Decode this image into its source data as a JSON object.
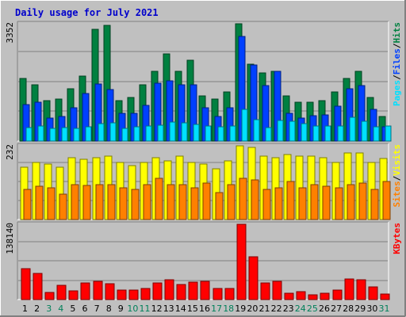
{
  "chart_data": {
    "title": "Daily usage for July 2021",
    "type": "bar",
    "categories": [
      "1",
      "2",
      "3",
      "4",
      "5",
      "6",
      "7",
      "8",
      "9",
      "10",
      "11",
      "12",
      "13",
      "14",
      "15",
      "16",
      "17",
      "18",
      "19",
      "20",
      "21",
      "22",
      "23",
      "24",
      "25",
      "26",
      "27",
      "28",
      "29",
      "30",
      "31"
    ],
    "weekend_days": [
      "3",
      "4",
      "10",
      "11",
      "17",
      "18",
      "24",
      "25",
      "31"
    ],
    "panels": [
      {
        "name": "hits-files-pages",
        "ymax_label": "3352",
        "legend": [
          "Pages",
          "/",
          "Files",
          "/",
          "Hits"
        ],
        "series": [
          {
            "name": "Hits",
            "color": "#008040",
            "values": [
              1800,
              1600,
              1150,
              1200,
              1500,
              1850,
              3200,
              3300,
              1150,
              1250,
              1600,
              2000,
              2500,
              2000,
              2300,
              1300,
              1200,
              1400,
              3352,
              2200,
              1950,
              2000,
              1300,
              1100,
              1100,
              1150,
              1400,
              1780,
              2000,
              1250,
              700
            ]
          },
          {
            "name": "Files",
            "color": "#0040ff",
            "values": [
              1050,
              1100,
              650,
              700,
              950,
              1350,
              1630,
              1480,
              800,
              800,
              1030,
              1650,
              1730,
              1600,
              1600,
              950,
              700,
              950,
              3000,
              2170,
              1580,
              2000,
              800,
              650,
              730,
              750,
              1000,
              1500,
              1580,
              900,
              400
            ]
          },
          {
            "name": "Pages",
            "color": "#00e0ff",
            "values": [
              380,
              420,
              360,
              390,
              360,
              400,
              490,
              520,
              360,
              400,
              420,
              450,
              540,
              510,
              480,
              440,
              400,
              440,
              900,
              620,
              390,
              600,
              570,
              500,
              420,
              430,
              420,
              670,
              560,
              400,
              430
            ]
          }
        ]
      },
      {
        "name": "visits-sites",
        "ymax_label": "232",
        "legend": [
          "Sites",
          "/",
          "Visits"
        ],
        "series": [
          {
            "name": "Visits",
            "color": "#ffff00",
            "values": [
              165,
              180,
              175,
              165,
              195,
              190,
              195,
              200,
              180,
              170,
              180,
              195,
              185,
              200,
              180,
              175,
              160,
              185,
              232,
              227,
              200,
              195,
              205,
              200,
              200,
              195,
              180,
              210,
              210,
              180,
              192
            ]
          },
          {
            "name": "Sites",
            "color": "#ff8000",
            "values": [
              95,
              105,
              100,
              80,
              110,
              108,
              110,
              110,
              100,
              95,
              110,
              130,
              110,
              110,
              100,
              115,
              85,
              110,
              130,
              125,
              95,
              100,
              120,
              100,
              110,
              105,
              100,
              110,
              115,
              95,
              120
            ]
          }
        ]
      },
      {
        "name": "kbytes",
        "ymax_label": "138140",
        "legend": [
          "KBytes"
        ],
        "series": [
          {
            "name": "KBytes",
            "color": "#ff0000",
            "values": [
              57000,
              48000,
              13000,
              26000,
              16000,
              31000,
              34000,
              29000,
              17000,
              18000,
              21000,
              30000,
              37000,
              28000,
              32000,
              34000,
              20000,
              21000,
              138140,
              79000,
              30000,
              33000,
              12000,
              15000,
              9000,
              11000,
              17000,
              38000,
              37000,
              23000,
              10000
            ]
          }
        ]
      }
    ]
  }
}
